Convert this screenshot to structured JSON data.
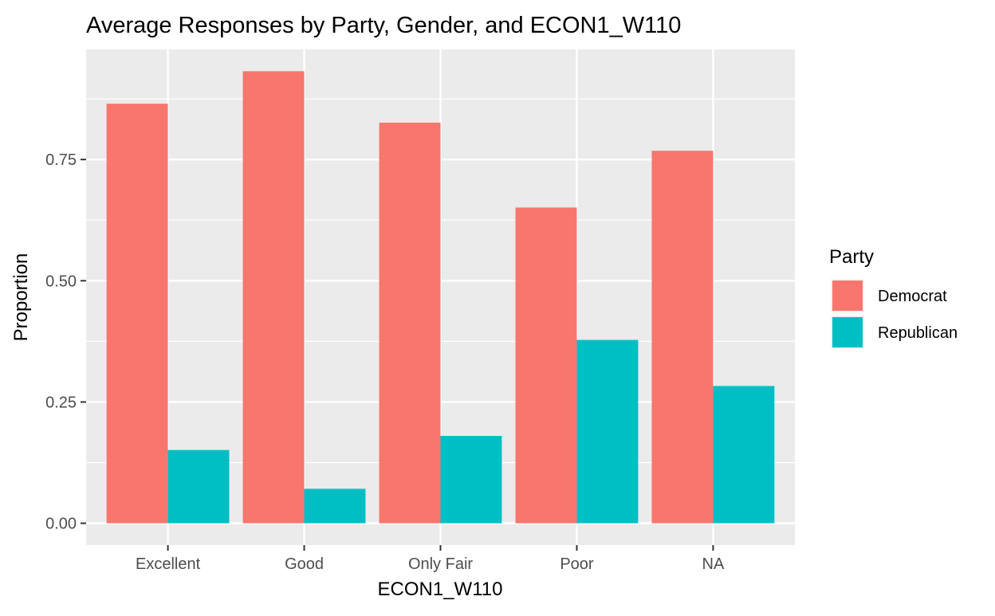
{
  "chart_data": {
    "type": "bar",
    "title": "Average Responses by Party, Gender, and ECON1_W110",
    "xlabel": "ECON1_W110",
    "ylabel": "Proportion",
    "categories": [
      "Excellent",
      "Good",
      "Only Fair",
      "Poor",
      "NA"
    ],
    "series": [
      {
        "name": "Democrat",
        "color": "#F8766D",
        "values": [
          0.865,
          0.932,
          0.826,
          0.651,
          0.768
        ]
      },
      {
        "name": "Republican",
        "color": "#00BFC4",
        "values": [
          0.151,
          0.071,
          0.18,
          0.378,
          0.283
        ]
      }
    ],
    "yticks": [
      0,
      0.25,
      0.5,
      0.75
    ],
    "ytick_labels": [
      "0.00",
      "0.25",
      "0.50",
      "0.75"
    ],
    "ylim": [
      -0.045,
      0.977
    ],
    "grid": true,
    "legend": {
      "title": "Party",
      "position": "right"
    },
    "colors": {
      "panel": "#EBEBEB",
      "grid": "#FFFFFF",
      "tick_text": "#4D4D4D"
    }
  }
}
